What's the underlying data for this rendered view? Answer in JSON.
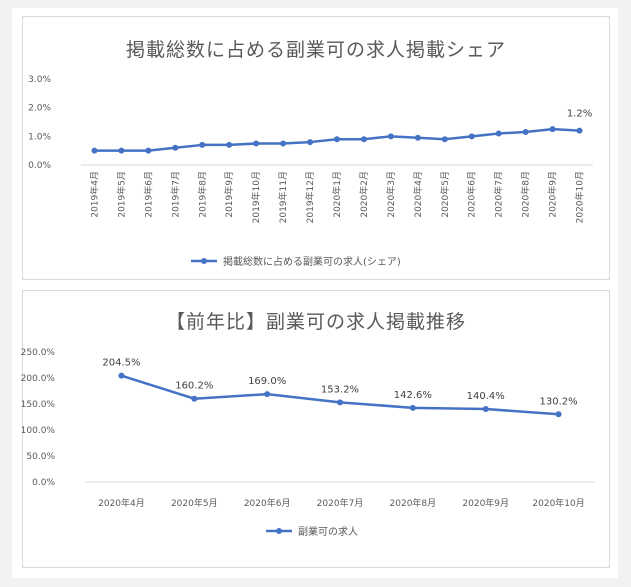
{
  "chart_data": [
    {
      "type": "line",
      "title": "掲載総数に占める副業可の求人掲載シェア",
      "categories": [
        "2019年4月",
        "2019年5月",
        "2019年6月",
        "2019年7月",
        "2019年8月",
        "2019年9月",
        "2019年10月",
        "2019年11月",
        "2019年12月",
        "2020年1月",
        "2020年2月",
        "2020年3月",
        "2020年4月",
        "2020年5月",
        "2020年6月",
        "2020年7月",
        "2020年8月",
        "2020年9月",
        "2020年10月"
      ],
      "series": [
        {
          "name": "掲載総数に占める副業可の求人(シェア)",
          "values": [
            0.5,
            0.5,
            0.5,
            0.6,
            0.7,
            0.7,
            0.75,
            0.75,
            0.8,
            0.9,
            0.9,
            1.0,
            0.95,
            0.9,
            1.0,
            1.1,
            1.15,
            1.25,
            1.2
          ]
        }
      ],
      "yticks": [
        "0.0%",
        "1.0%",
        "2.0%",
        "3.0%"
      ],
      "ylim": [
        0,
        3
      ],
      "data_labels": [
        {
          "index": 18,
          "text": "1.2%"
        }
      ],
      "color": "#4472c4",
      "legend_position": "bottom",
      "grid": false
    },
    {
      "type": "line",
      "title": "【前年比】副業可の求人掲載推移",
      "categories": [
        "2020年4月",
        "2020年5月",
        "2020年6月",
        "2020年7月",
        "2020年8月",
        "2020年9月",
        "2020年10月"
      ],
      "series": [
        {
          "name": "副業可の求人",
          "values": [
            204.5,
            160.2,
            169.0,
            153.2,
            142.6,
            140.4,
            130.2
          ]
        }
      ],
      "data_labels": [
        "204.5%",
        "160.2%",
        "169.0%",
        "153.2%",
        "142.6%",
        "140.4%",
        "130.2%"
      ],
      "yticks": [
        "0.0%",
        "50.0%",
        "100.0%",
        "150.0%",
        "200.0%",
        "250.0%"
      ],
      "ylim": [
        0,
        250
      ],
      "color": "#4472c4",
      "legend_position": "bottom",
      "grid": false
    }
  ]
}
